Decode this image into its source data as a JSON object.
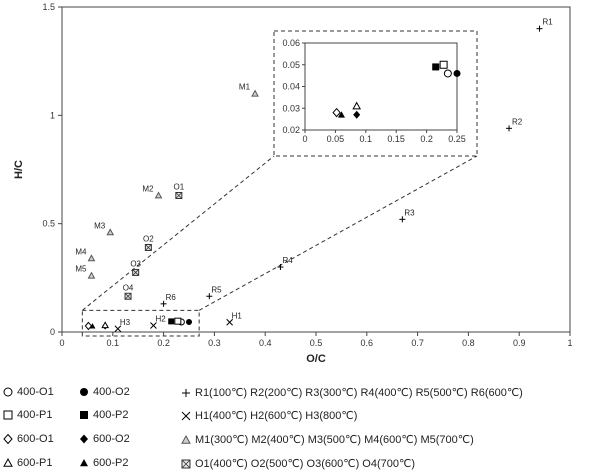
{
  "chart_data": {
    "type": "scatter",
    "title": "",
    "xlabel": "O/C",
    "ylabel": "H/C",
    "xlim": [
      0,
      1
    ],
    "ylim": [
      0,
      1.5
    ],
    "x_ticks": [
      "0",
      "0.1",
      "0.2",
      "0.3",
      "0.4",
      "0.5",
      "0.6",
      "0.7",
      "0.8",
      "0.9",
      "1"
    ],
    "y_ticks": [
      "0",
      "0.5",
      "1",
      "1.5"
    ],
    "series": [
      {
        "name": "400-O1",
        "marker": "circle-open",
        "points": [
          {
            "x": 0.235,
            "y": 0.046
          }
        ]
      },
      {
        "name": "400-O2",
        "marker": "circle-filled",
        "points": [
          {
            "x": 0.25,
            "y": 0.046
          }
        ]
      },
      {
        "name": "400-P1",
        "marker": "square-open",
        "points": [
          {
            "x": 0.228,
            "y": 0.05
          }
        ]
      },
      {
        "name": "400-P2",
        "marker": "square-filled",
        "points": [
          {
            "x": 0.215,
            "y": 0.049
          }
        ]
      },
      {
        "name": "600-O1",
        "marker": "diamond-open",
        "points": [
          {
            "x": 0.052,
            "y": 0.028
          }
        ]
      },
      {
        "name": "600-O2",
        "marker": "diamond-filled",
        "points": [
          {
            "x": 0.085,
            "y": 0.027
          }
        ]
      },
      {
        "name": "600-P1",
        "marker": "triangle-open",
        "points": [
          {
            "x": 0.085,
            "y": 0.031
          }
        ]
      },
      {
        "name": "600-P2",
        "marker": "triangle-filled",
        "points": [
          {
            "x": 0.06,
            "y": 0.027
          }
        ]
      },
      {
        "name": "R1(100℃) R2(200℃) R3(300℃) R4(400℃) R5(500℃) R6(600℃)",
        "marker": "plus",
        "points": [
          {
            "x": 0.94,
            "y": 1.4,
            "label": "R1"
          },
          {
            "x": 0.88,
            "y": 0.94,
            "label": "R2"
          },
          {
            "x": 0.67,
            "y": 0.52,
            "label": "R3"
          },
          {
            "x": 0.43,
            "y": 0.3,
            "label": "R4"
          },
          {
            "x": 0.29,
            "y": 0.165,
            "label": "R5"
          },
          {
            "x": 0.2,
            "y": 0.13,
            "label": "R6"
          }
        ]
      },
      {
        "name": "H1(400℃) H2(600℃) H3(800℃)",
        "marker": "cross",
        "points": [
          {
            "x": 0.33,
            "y": 0.045,
            "label": "H1"
          },
          {
            "x": 0.18,
            "y": 0.03,
            "label": "H2"
          },
          {
            "x": 0.11,
            "y": 0.015,
            "label": "H3"
          }
        ]
      },
      {
        "name": "M1(300℃) M2(400℃) M3(500℃) M4(600℃) M5(700℃)",
        "marker": "triangle-gray",
        "points": [
          {
            "x": 0.38,
            "y": 1.1,
            "label": "M1"
          },
          {
            "x": 0.19,
            "y": 0.63,
            "label": "M2"
          },
          {
            "x": 0.095,
            "y": 0.46,
            "label": "M3"
          },
          {
            "x": 0.058,
            "y": 0.34,
            "label": "M4"
          },
          {
            "x": 0.058,
            "y": 0.26,
            "label": "M5"
          }
        ]
      },
      {
        "name": "O1(400℃) O2(500℃) O3(600℃) O4(700℃)",
        "marker": "square-x",
        "points": [
          {
            "x": 0.23,
            "y": 0.63,
            "label": "O1"
          },
          {
            "x": 0.17,
            "y": 0.39,
            "label": "O2"
          },
          {
            "x": 0.145,
            "y": 0.275,
            "label": "O3"
          },
          {
            "x": 0.13,
            "y": 0.165,
            "label": "O4"
          }
        ]
      }
    ],
    "inset": {
      "xlim": [
        0,
        0.25
      ],
      "ylim": [
        0.02,
        0.06
      ],
      "x_ticks": [
        "0",
        "0.05",
        "0.1",
        "0.15",
        "0.2",
        "0.25"
      ],
      "y_ticks": [
        "0.02",
        "0.03",
        "0.04",
        "0.05",
        "0.06"
      ],
      "zoom_region": {
        "xlim": [
          0.04,
          0.27
        ],
        "ylim": [
          0,
          0.1
        ]
      }
    },
    "legend_layout": [
      [
        0,
        1,
        8
      ],
      [
        2,
        3,
        9
      ],
      [
        4,
        5,
        10
      ],
      [
        6,
        7,
        11
      ]
    ]
  }
}
